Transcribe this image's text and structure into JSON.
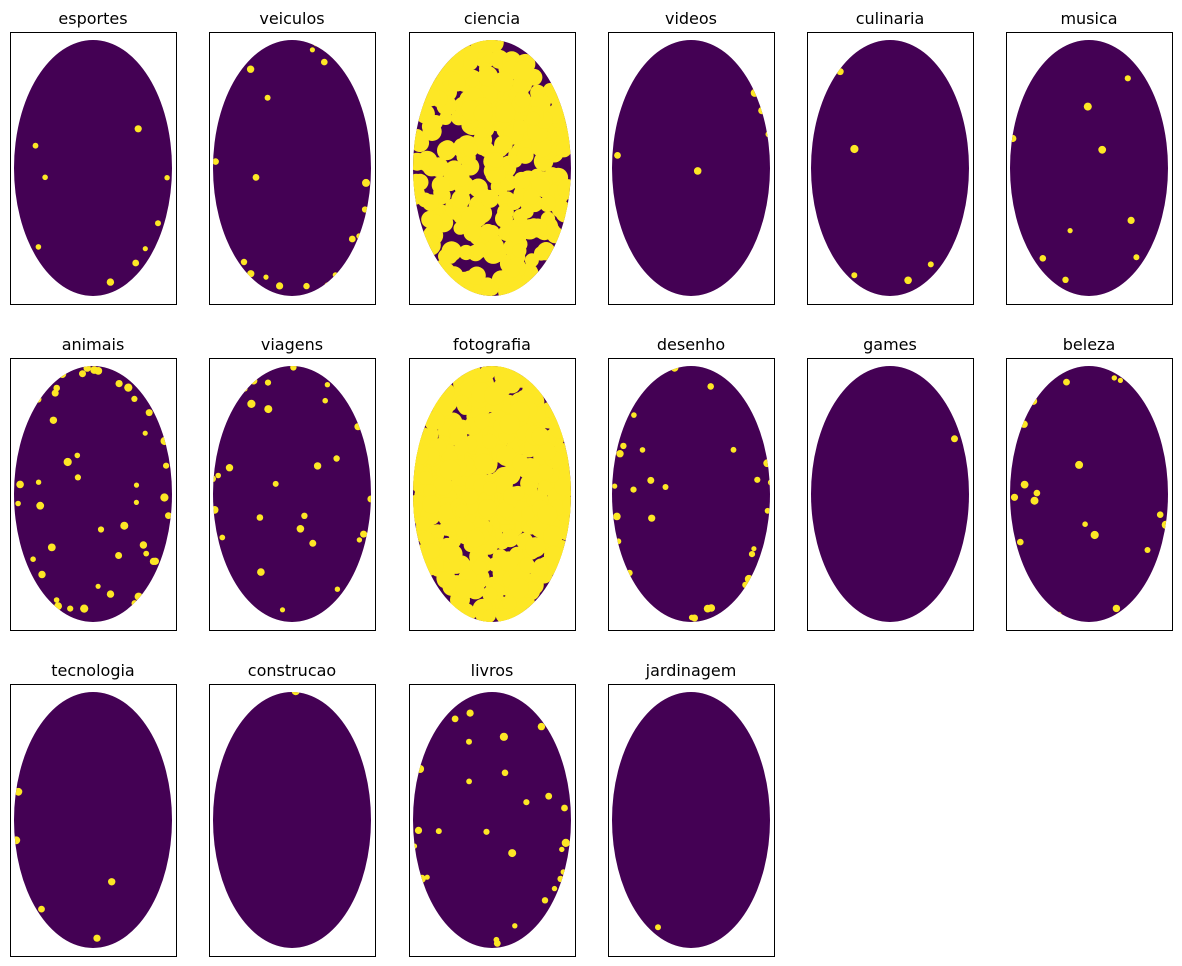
{
  "figure": {
    "background": "#ffffff"
  },
  "chart_data": {
    "type": "scatter",
    "description_of_encoding": "binary category map per panel; background points = 0, highlighted points = 1",
    "colors": {
      "value_0": "#440154",
      "value_1": "#fde725",
      "axes_frame": "#000000"
    },
    "grid": false,
    "ticks": false,
    "panels": [
      {
        "title": "esportes",
        "highlight_share": 0.01
      },
      {
        "title": "veiculos",
        "highlight_share": 0.02
      },
      {
        "title": "ciencia",
        "highlight_share": 0.35
      },
      {
        "title": "videos",
        "highlight_share": 0.005
      },
      {
        "title": "culinaria",
        "highlight_share": 0.005
      },
      {
        "title": "musica",
        "highlight_share": 0.01
      },
      {
        "title": "animais",
        "highlight_share": 0.05
      },
      {
        "title": "viagens",
        "highlight_share": 0.03
      },
      {
        "title": "fotografia",
        "highlight_share": 0.55
      },
      {
        "title": "desenho",
        "highlight_share": 0.03
      },
      {
        "title": "games",
        "highlight_share": 0.001
      },
      {
        "title": "beleza",
        "highlight_share": 0.02
      },
      {
        "title": "tecnologia",
        "highlight_share": 0.005
      },
      {
        "title": "construcao",
        "highlight_share": 0.001
      },
      {
        "title": "livros",
        "highlight_share": 0.03
      },
      {
        "title": "jardinagem",
        "highlight_share": 0.001
      }
    ]
  }
}
